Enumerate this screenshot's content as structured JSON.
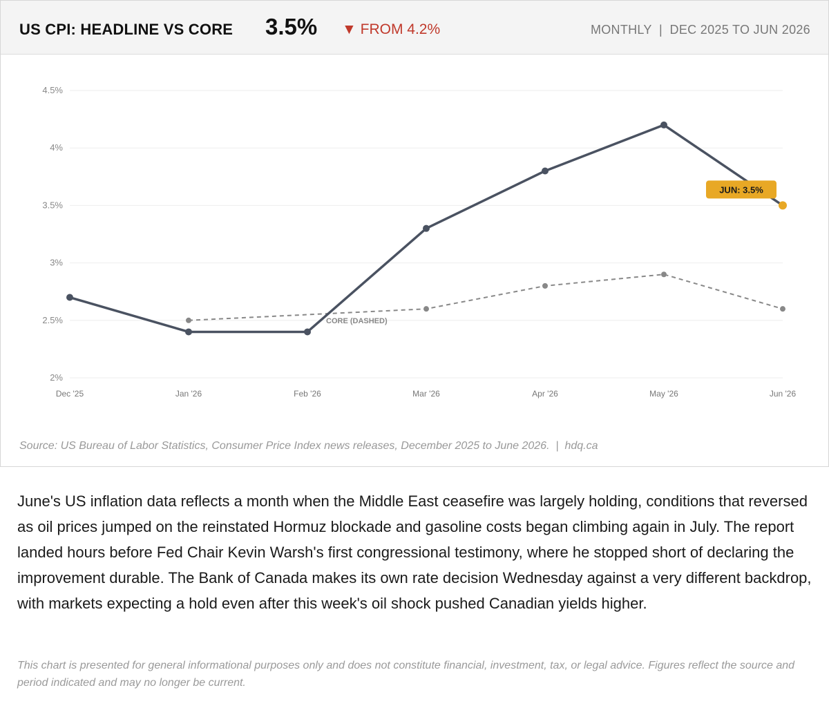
{
  "header": {
    "title": "US CPI: HEADLINE VS CORE",
    "current_value": "3.5%",
    "change_label": "▼ FROM 4.2%",
    "period_label": "MONTHLY  |  DEC 2025 TO JUN 2026"
  },
  "chart_data": {
    "type": "line",
    "x": [
      "Dec '25",
      "Jan '26",
      "Feb '26",
      "Mar '26",
      "Apr '26",
      "May '26",
      "Jun '26"
    ],
    "series": [
      {
        "values": [
          2.7,
          2.4,
          2.4,
          3.3,
          3.8,
          4.2,
          3.5
        ]
      },
      {
        "name": "CORE (DASHED)",
        "values": [
          null,
          2.5,
          null,
          2.6,
          2.8,
          2.9,
          2.6
        ]
      }
    ],
    "y_tick_labels": [
      "2%",
      "2.5%",
      "3%",
      "3.5%",
      "4%",
      "4.5%"
    ],
    "y_ticks": [
      2,
      2.5,
      3,
      3.5,
      4,
      4.5
    ],
    "ylim": [
      2,
      4.5
    ],
    "grid": true,
    "callout": {
      "label": "JUN: 3.5%",
      "series_index": 0,
      "point_index": 6
    },
    "colors": {
      "headline": "#4a5261",
      "core": "#888888",
      "callout": "#e8a825",
      "grid": "#eeeeee"
    }
  },
  "source": "Source: US Bureau of Labor Statistics, Consumer Price Index news releases, December 2025 to June 2026.  |  hdq.ca",
  "body_text": "June's US inflation data reflects a month when the Middle East ceasefire was largely holding, conditions that reversed as oil prices jumped on the reinstated Hormuz blockade and gasoline costs began climbing again in July. The report landed hours before Fed Chair Kevin Warsh's first congressional testimony, where he stopped short of declaring the improvement durable. The Bank of Canada makes its own rate decision Wednesday against a very different backdrop, with markets expecting a hold even after this week's oil shock pushed Canadian yields higher.",
  "disclaimer": "This chart is presented for general informational purposes only and does not constitute financial, investment, tax, or legal advice. Figures reflect the source and period indicated and may no longer be current."
}
